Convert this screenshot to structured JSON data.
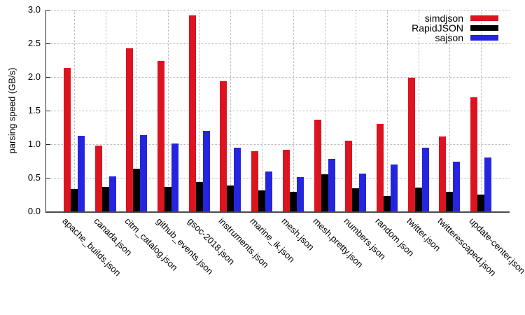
{
  "chart_data": {
    "type": "bar",
    "title": "",
    "xlabel": "",
    "ylabel": "parsing speed (GB/s)",
    "ylim": [
      0,
      3.0
    ],
    "yticks": [
      0.0,
      0.5,
      1.0,
      1.5,
      2.0,
      2.5,
      3.0
    ],
    "grid": true,
    "legend_position": "top-right",
    "categories": [
      "apache_builds.json",
      "canada.json",
      "citm_catalog.json",
      "github_events.json",
      "gsoc-2018.json",
      "instruments.json",
      "marine_ik.json",
      "mesh.json",
      "mesh.pretty.json",
      "numbers.json",
      "random.json",
      "twitter.json",
      "twitterescaped.json",
      "update-center.json"
    ],
    "series": [
      {
        "name": "simdjson",
        "color": "#dc1420",
        "values": [
          2.14,
          0.98,
          2.43,
          2.24,
          2.92,
          1.94,
          0.9,
          0.92,
          1.36,
          1.05,
          1.3,
          1.99,
          1.11,
          1.7
        ]
      },
      {
        "name": "RapidJSON",
        "color": "#000000",
        "values": [
          0.33,
          0.36,
          0.64,
          0.36,
          0.44,
          0.39,
          0.31,
          0.29,
          0.55,
          0.34,
          0.23,
          0.35,
          0.29,
          0.25
        ]
      },
      {
        "name": "sajson",
        "color": "#2525e0",
        "values": [
          1.12,
          0.52,
          1.14,
          1.01,
          1.2,
          0.95,
          0.59,
          0.51,
          0.78,
          0.56,
          0.7,
          0.95,
          0.74,
          0.8
        ]
      }
    ]
  }
}
